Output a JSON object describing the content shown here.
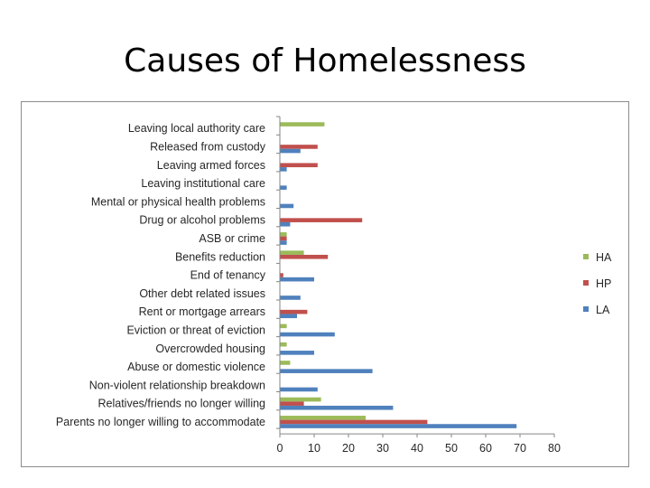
{
  "slide": {
    "title": "Causes of Homelessness"
  },
  "chart_data": {
    "type": "bar",
    "orientation": "horizontal",
    "categories": [
      "Leaving local authority care",
      "Released from custody",
      "Leaving armed forces",
      "Leaving institutional care",
      "Mental or physical health problems",
      "Drug or alcohol problems",
      "ASB or crime",
      "Benefits reduction",
      "End of tenancy",
      "Other debt related issues",
      "Rent or mortgage arrears",
      "Eviction or threat of eviction",
      "Overcrowded housing",
      "Abuse or domestic violence",
      "Non-violent relationship breakdown",
      "Relatives/friends no longer willing",
      "Parents no longer willing to accommodate"
    ],
    "series": [
      {
        "name": "HA",
        "color": "#9bbb59",
        "values": [
          13,
          0,
          0,
          0,
          0,
          0,
          2,
          7,
          0,
          0,
          0,
          2,
          2,
          3,
          0,
          12,
          25
        ]
      },
      {
        "name": "HP",
        "color": "#c0504d",
        "values": [
          0,
          11,
          11,
          0,
          0,
          24,
          2,
          14,
          1,
          0,
          8,
          0,
          0,
          0,
          0,
          7,
          43
        ]
      },
      {
        "name": "LA",
        "color": "#4f81bd",
        "values": [
          0,
          6,
          2,
          2,
          4,
          3,
          2,
          0,
          10,
          6,
          5,
          16,
          10,
          27,
          11,
          33,
          69
        ]
      }
    ],
    "xlim": [
      0,
      80
    ],
    "xticks": [
      0,
      10,
      20,
      30,
      40,
      50,
      60,
      70,
      80
    ],
    "xticks_text": [
      "0",
      "10",
      "20",
      "30",
      "40",
      "50",
      "60",
      "70",
      "80"
    ],
    "grid": false,
    "legend_position": "right",
    "legend_order": [
      "HA",
      "HP",
      "LA"
    ]
  }
}
